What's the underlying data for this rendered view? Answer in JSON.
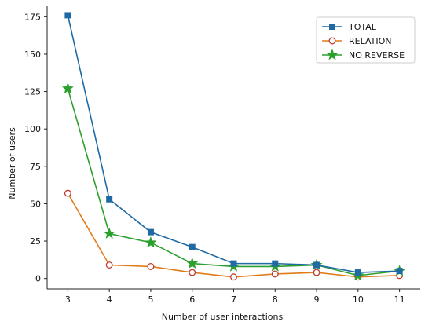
{
  "chart_data": {
    "type": "line",
    "x": [
      3,
      4,
      5,
      6,
      7,
      8,
      9,
      10,
      11
    ],
    "xlabel": "Number of user interactions",
    "ylabel": "Number of users",
    "xlim": [
      2.5,
      11.5
    ],
    "ylim": [
      -7,
      182
    ],
    "yticks": [
      0,
      25,
      50,
      75,
      100,
      125,
      150,
      175
    ],
    "grid": false,
    "legend_position": "top-right",
    "series": [
      {
        "name": "TOTAL",
        "color": "#1f6aa5",
        "marker": "square",
        "values": [
          176,
          53,
          31,
          21,
          10,
          10,
          9,
          4,
          5
        ]
      },
      {
        "name": "RELATION",
        "color": "#e07b1a",
        "marker_face": "#ffffff",
        "marker_edge": "#c0392b",
        "marker": "circle-open",
        "values": [
          57,
          9,
          8,
          4,
          1,
          3,
          4,
          1,
          2
        ]
      },
      {
        "name": "NO REVERSE",
        "color": "#2ca02c",
        "marker": "star",
        "values": [
          127,
          30,
          24,
          10,
          8,
          8,
          9,
          2,
          5
        ]
      }
    ]
  }
}
